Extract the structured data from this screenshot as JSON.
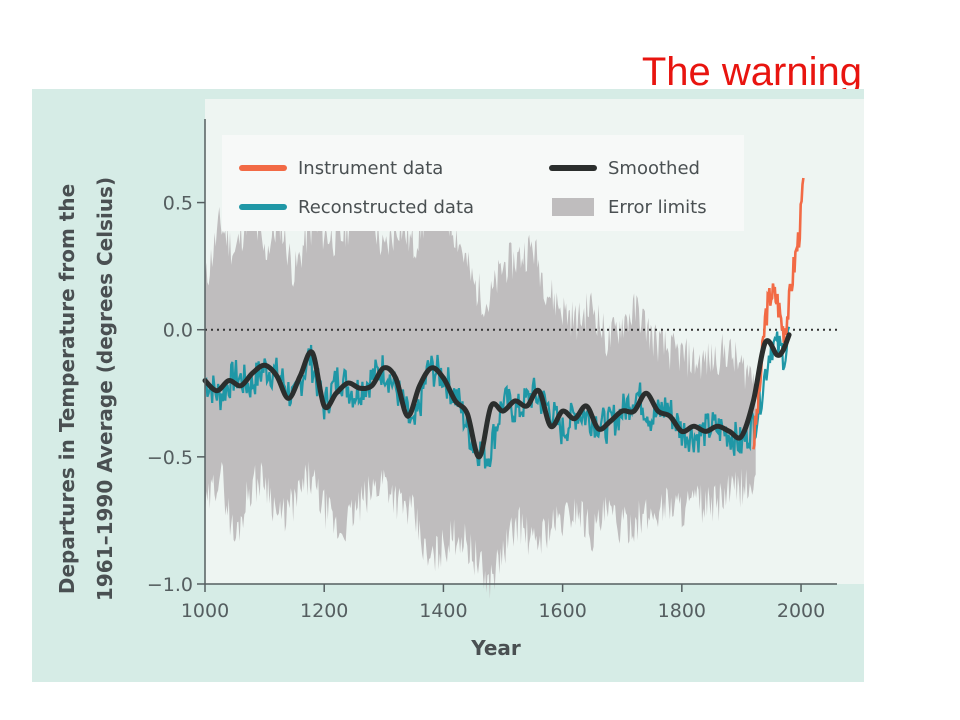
{
  "slide": {
    "title": "The warning"
  },
  "colors": {
    "instrument": "#f26a45",
    "reconstructed": "#1f97a6",
    "smoothed": "#2b2e2d",
    "error": "#bfbdbe",
    "panel_background": "#d6ece6",
    "plot_background": "#eef5f2",
    "title": "#e8140f"
  },
  "chart_data": {
    "type": "line",
    "xlabel": "Year",
    "ylabel": [
      "Departures in Temperature from the",
      "1961–1990 Average (degrees Celsius)"
    ],
    "xlim": [
      1000,
      2010
    ],
    "ylim": [
      -1.0,
      0.75
    ],
    "x_ticks": [
      1000,
      1200,
      1400,
      1600,
      1800,
      2000
    ],
    "x_tick_labels": [
      "1000",
      "1200",
      "1400",
      "1600",
      "1800",
      "2000"
    ],
    "y_ticks": [
      0.5,
      0.0,
      -0.5,
      -1.0
    ],
    "y_tick_labels": [
      "0.5",
      "0.0",
      "−0.5",
      "−1.0"
    ],
    "reference_line": {
      "y": 0.0,
      "style": "dotted"
    },
    "legend": {
      "placement": "top",
      "entries": [
        {
          "label": "Instrument data",
          "series": "instrument"
        },
        {
          "label": "Smoothed",
          "series": "smoothed"
        },
        {
          "label": "Reconstructed data",
          "series": "reconstructed"
        },
        {
          "label": "Error limits",
          "series": "error"
        }
      ]
    },
    "series": [
      {
        "name": "Error limits",
        "kind": "band",
        "x": [
          1000,
          1025,
          1050,
          1075,
          1100,
          1125,
          1150,
          1175,
          1200,
          1225,
          1250,
          1275,
          1300,
          1325,
          1350,
          1375,
          1400,
          1425,
          1450,
          1475,
          1500,
          1525,
          1550,
          1575,
          1600,
          1625,
          1650,
          1675,
          1700,
          1725,
          1750,
          1775,
          1800,
          1825,
          1850,
          1875,
          1900,
          1925
        ],
        "upper": [
          0.18,
          0.42,
          0.3,
          0.47,
          0.3,
          0.43,
          0.22,
          0.4,
          0.38,
          0.35,
          0.45,
          0.48,
          0.3,
          0.42,
          0.33,
          0.47,
          0.48,
          0.36,
          0.18,
          0.1,
          0.25,
          0.28,
          0.33,
          0.15,
          0.08,
          0.03,
          0.1,
          -0.05,
          0.03,
          0.08,
          -0.03,
          -0.08,
          -0.1,
          -0.13,
          -0.12,
          -0.08,
          -0.15,
          -0.18
        ],
        "lower": [
          -0.72,
          -0.55,
          -0.83,
          -0.62,
          -0.58,
          -0.75,
          -0.68,
          -0.58,
          -0.7,
          -0.8,
          -0.72,
          -0.65,
          -0.58,
          -0.68,
          -0.73,
          -0.92,
          -0.85,
          -0.8,
          -0.88,
          -1.0,
          -0.88,
          -0.75,
          -0.85,
          -0.78,
          -0.75,
          -0.7,
          -0.8,
          -0.72,
          -0.78,
          -0.75,
          -0.73,
          -0.68,
          -0.7,
          -0.68,
          -0.7,
          -0.65,
          -0.62,
          -0.62
        ]
      },
      {
        "name": "Reconstructed data",
        "kind": "line",
        "x": [
          1000,
          1025,
          1050,
          1075,
          1100,
          1125,
          1150,
          1175,
          1200,
          1225,
          1250,
          1275,
          1300,
          1325,
          1350,
          1375,
          1400,
          1425,
          1450,
          1475,
          1500,
          1525,
          1550,
          1575,
          1600,
          1625,
          1650,
          1675,
          1700,
          1725,
          1750,
          1775,
          1800,
          1825,
          1850,
          1875,
          1900,
          1925,
          1950,
          1975,
          1980
        ],
        "y": [
          -0.2,
          -0.26,
          -0.18,
          -0.22,
          -0.15,
          -0.18,
          -0.28,
          -0.1,
          -0.3,
          -0.18,
          -0.25,
          -0.2,
          -0.15,
          -0.25,
          -0.4,
          -0.15,
          -0.18,
          -0.28,
          -0.45,
          -0.5,
          -0.28,
          -0.32,
          -0.25,
          -0.3,
          -0.4,
          -0.32,
          -0.35,
          -0.38,
          -0.32,
          -0.25,
          -0.35,
          -0.3,
          -0.4,
          -0.42,
          -0.38,
          -0.4,
          -0.45,
          -0.35,
          -0.05,
          -0.1,
          0.0
        ]
      },
      {
        "name": "Instrument data",
        "kind": "line",
        "x": [
          1920,
          1930,
          1940,
          1950,
          1960,
          1970,
          1975,
          1980,
          1985,
          1990,
          1995,
          2000,
          2005
        ],
        "y": [
          -0.45,
          -0.25,
          0.05,
          0.15,
          0.12,
          0.0,
          0.03,
          0.1,
          0.2,
          0.28,
          0.35,
          0.45,
          0.62
        ]
      },
      {
        "name": "Smoothed",
        "kind": "line",
        "x": [
          1000,
          1020,
          1040,
          1060,
          1080,
          1100,
          1120,
          1140,
          1160,
          1180,
          1200,
          1220,
          1240,
          1260,
          1280,
          1300,
          1320,
          1340,
          1360,
          1380,
          1400,
          1420,
          1440,
          1460,
          1480,
          1500,
          1520,
          1540,
          1560,
          1580,
          1600,
          1620,
          1640,
          1660,
          1680,
          1700,
          1720,
          1740,
          1760,
          1780,
          1800,
          1820,
          1840,
          1860,
          1880,
          1900,
          1920,
          1940,
          1960,
          1970,
          1980
        ],
        "y": [
          -0.2,
          -0.24,
          -0.2,
          -0.22,
          -0.17,
          -0.14,
          -0.18,
          -0.27,
          -0.18,
          -0.09,
          -0.3,
          -0.25,
          -0.21,
          -0.23,
          -0.22,
          -0.15,
          -0.19,
          -0.34,
          -0.22,
          -0.15,
          -0.19,
          -0.28,
          -0.33,
          -0.5,
          -0.3,
          -0.32,
          -0.28,
          -0.3,
          -0.24,
          -0.38,
          -0.32,
          -0.35,
          -0.3,
          -0.39,
          -0.36,
          -0.32,
          -0.32,
          -0.25,
          -0.32,
          -0.34,
          -0.4,
          -0.38,
          -0.4,
          -0.38,
          -0.4,
          -0.42,
          -0.28,
          -0.05,
          -0.1,
          -0.08,
          -0.02
        ]
      }
    ]
  }
}
